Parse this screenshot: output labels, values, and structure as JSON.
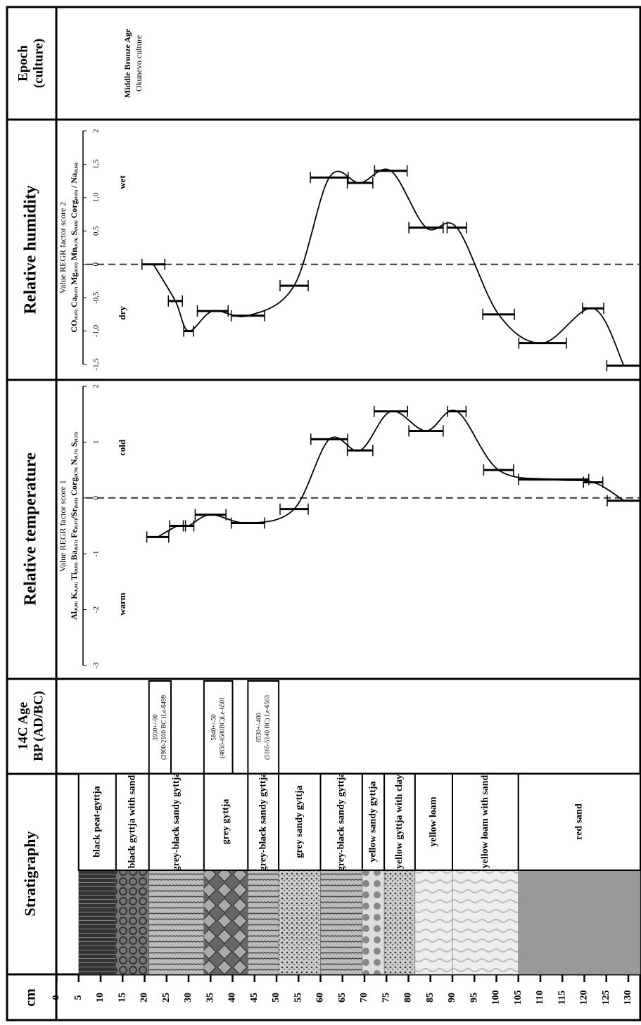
{
  "columns": {
    "depth": "cm",
    "stratigraphy": "Stratigraphy",
    "age": [
      "14C Age",
      "BP (AD/BC)"
    ],
    "temperature": "Relative temperature",
    "humidity": "Relative humidity",
    "epoch": [
      "Epoch",
      "(culture)"
    ]
  },
  "depth_axis": {
    "ticks": [
      0,
      5,
      10,
      15,
      20,
      25,
      30,
      35,
      40,
      45,
      50,
      55,
      60,
      65,
      70,
      75,
      80,
      85,
      90,
      95,
      100,
      105,
      110,
      115,
      120,
      125,
      130
    ]
  },
  "stratigraphy": {
    "layers": [
      {
        "name": "black  peat-gyttja",
        "top": 5
      },
      {
        "name": "black gyttja with sand",
        "top": 13.5
      },
      {
        "name": "grey-black sandy gyttja",
        "top": 21
      },
      {
        "name": "grey  gyttja",
        "top": 33.5
      },
      {
        "name": "grey-black sandy gyttja",
        "top": 43.5
      },
      {
        "name": "grey sandy gyttja",
        "top": 50.5
      },
      {
        "name": "grey-black sandy gyttja",
        "top": 60
      },
      {
        "name": "yellow sandy gyttja",
        "top": 69.5
      },
      {
        "name": "yellow  gyttja with clay",
        "top": 74.5
      },
      {
        "name": "yellow  loam",
        "top": 81.5
      },
      {
        "name": "yellow  loam with sand",
        "top": 90
      },
      {
        "name": "red sand",
        "top": 105
      }
    ]
  },
  "dates": [
    {
      "top": 21,
      "bottom": 26,
      "age": "3930+/-90",
      "calibrated": "(2900-2100 BC )Le-6499"
    },
    {
      "top": 33.5,
      "bottom": 40,
      "age": "5840+/-50",
      "calibrated": "(4850-4580BC)Le-6501"
    },
    {
      "top": 43.5,
      "bottom": 50.5,
      "age": "6530+/-400",
      "calibrated": "(5165-5140 BC) Le-6503"
    }
  ],
  "epoch": {
    "name": "Middle Bronze Age",
    "culture": "Okunevo culture"
  },
  "chart_data": [
    {
      "type": "line",
      "title": "Value REGR factor score 1",
      "formula": [
        {
          "t": "Al",
          "s": "(0,80)"
        },
        {
          "t": " K",
          "s": "(0,84)"
        },
        {
          "t": " Ti",
          "s": "(0,82)"
        },
        {
          "t": " Ba",
          "s": "(0,61)"
        },
        {
          "t": " Fe",
          "s": "(0,87)"
        },
        {
          "t": "/Sr",
          "s": "(0,61)"
        },
        {
          "t": " Corg",
          "s": "(0,79)"
        },
        {
          "t": " N",
          "s": "(0,73)"
        },
        {
          "t": " S",
          "s": "(0,72)"
        }
      ],
      "low_label": "warm",
      "high_label": "cold",
      "x": [
        23,
        27.5,
        30,
        35,
        43.5,
        54,
        62,
        69,
        76,
        84,
        91,
        100.5,
        113,
        122,
        129
      ],
      "x_err": [
        2.5,
        1.8,
        1.2,
        3.5,
        3.8,
        3.2,
        4.2,
        2.9,
        3.8,
        3.9,
        2.1,
        3.4,
        8,
        2.2,
        3.8
      ],
      "values": [
        -0.7,
        -0.5,
        -0.5,
        -0.3,
        -0.45,
        -0.2,
        1.05,
        0.85,
        1.55,
        1.2,
        1.55,
        0.5,
        0.33,
        0.28,
        -0.05
      ],
      "ylim": [
        -3,
        2
      ],
      "yticks": [
        -3,
        -2,
        -1,
        0,
        1,
        2
      ],
      "zero_line": true,
      "color": "#000000"
    },
    {
      "type": "line",
      "title": "Value REGR factor score 2",
      "formula": [
        {
          "t": "CO",
          "s": "(0,85)"
        },
        {
          "t": " Ca",
          "s": "(0,87)"
        },
        {
          "t": " Mg",
          "s": "(0,93)"
        },
        {
          "t": " Mn",
          "s": "(0,79)"
        },
        {
          "t": " S",
          "s": "(0,69)"
        },
        {
          "t": " Corg",
          "s": "(0,65)"
        },
        {
          "t": " / Na",
          "s": "(0,64)"
        }
      ],
      "low_label": "dry",
      "high_label": "wet",
      "x": [
        22,
        27,
        30,
        35.5,
        43.5,
        54,
        62,
        69,
        76,
        84,
        91,
        100.5,
        110.5,
        122,
        129
      ],
      "x_err": [
        2.6,
        1.6,
        1.1,
        3.5,
        3.8,
        3.2,
        4.3,
        2.9,
        3.7,
        3.9,
        2.2,
        3.6,
        5.4,
        2.4,
        3.9
      ],
      "values": [
        0,
        -0.55,
        -1.0,
        -0.7,
        -0.77,
        -0.32,
        1.3,
        1.22,
        1.4,
        0.55,
        0.55,
        -0.75,
        -1.18,
        -0.66,
        -1.52
      ],
      "ylim": [
        -1.5,
        2
      ],
      "yticks": [
        {
          "value": -1.5,
          "label": "-1,5"
        },
        {
          "value": -1,
          "label": "-1,0"
        },
        {
          "value": -0.5,
          "label": "-0,5"
        },
        0,
        {
          "value": 0.5,
          "label": "0,5"
        },
        {
          "value": 1,
          "label": "1,0"
        },
        {
          "value": 1.5,
          "label": "1,5"
        },
        2
      ],
      "zero_line": true,
      "color": "#000000"
    }
  ]
}
